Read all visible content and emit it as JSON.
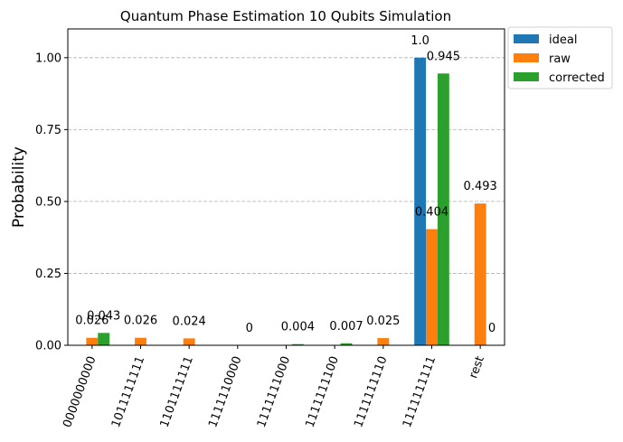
{
  "chart_data": {
    "type": "bar",
    "title": "Quantum Phase Estimation 10 Qubits Simulation",
    "xlabel": "",
    "ylabel": "Probability",
    "ylim": [
      0,
      1.1
    ],
    "yticks": [
      "0.00",
      "0.25",
      "0.50",
      "0.75",
      "1.00"
    ],
    "ytick_values": [
      0,
      0.25,
      0.5,
      0.75,
      1.0
    ],
    "grid": "horizontal dashed",
    "legend_position": "outside-top-right",
    "categories": [
      "0000000000",
      "1011111111",
      "1101111111",
      "1111110000",
      "1111111000",
      "1111111100",
      "1111111110",
      "1111111111",
      "rest"
    ],
    "series": [
      {
        "name": "ideal",
        "color": "#1f77b4",
        "values": [
          null,
          null,
          null,
          null,
          null,
          null,
          null,
          1.0,
          null
        ],
        "labels": [
          null,
          null,
          null,
          null,
          null,
          null,
          null,
          "1.0",
          null
        ]
      },
      {
        "name": "raw",
        "color": "#ff7f0e",
        "values": [
          0.026,
          0.026,
          0.024,
          null,
          null,
          null,
          0.025,
          0.404,
          0.493
        ],
        "labels": [
          "0.026",
          "0.026",
          "0.024",
          null,
          null,
          null,
          "0.025",
          "0.404",
          "0.493"
        ]
      },
      {
        "name": "corrected",
        "color": "#2ca02c",
        "values": [
          0.043,
          null,
          null,
          0,
          0.004,
          0.007,
          null,
          0.945,
          0
        ],
        "labels": [
          "0.043",
          null,
          null,
          "0",
          "0.004",
          "0.007",
          null,
          "0.945",
          "0"
        ]
      }
    ]
  }
}
